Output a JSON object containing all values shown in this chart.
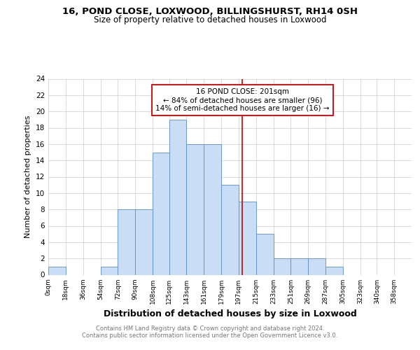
{
  "title1": "16, POND CLOSE, LOXWOOD, BILLINGSHURST, RH14 0SH",
  "title2": "Size of property relative to detached houses in Loxwood",
  "xlabel": "Distribution of detached houses by size in Loxwood",
  "ylabel": "Number of detached properties",
  "bar_left_edges": [
    0,
    18,
    36,
    54,
    72,
    90,
    108,
    125,
    143,
    161,
    179,
    197,
    215,
    233,
    251,
    269,
    287,
    305,
    323,
    340
  ],
  "bar_widths": [
    18,
    18,
    18,
    18,
    18,
    18,
    17,
    18,
    18,
    18,
    18,
    18,
    18,
    18,
    18,
    18,
    18,
    18,
    17,
    18
  ],
  "bar_heights": [
    1,
    0,
    0,
    1,
    8,
    8,
    15,
    19,
    16,
    16,
    11,
    9,
    5,
    2,
    2,
    2,
    1,
    0,
    0,
    0
  ],
  "xtick_labels": [
    "0sqm",
    "18sqm",
    "36sqm",
    "54sqm",
    "72sqm",
    "90sqm",
    "108sqm",
    "125sqm",
    "143sqm",
    "161sqm",
    "179sqm",
    "197sqm",
    "215sqm",
    "233sqm",
    "251sqm",
    "269sqm",
    "287sqm",
    "305sqm",
    "323sqm",
    "340sqm",
    "358sqm"
  ],
  "xtick_positions": [
    0,
    18,
    36,
    54,
    72,
    90,
    108,
    125,
    143,
    161,
    179,
    197,
    215,
    233,
    251,
    269,
    287,
    305,
    323,
    340,
    358
  ],
  "ylim": [
    0,
    24
  ],
  "yticks": [
    0,
    2,
    4,
    6,
    8,
    10,
    12,
    14,
    16,
    18,
    20,
    22,
    24
  ],
  "bar_color": "#c9ddf5",
  "bar_edge_color": "#5b8dc8",
  "ref_line_x": 201,
  "ref_line_color": "#cc0000",
  "annotation_line1": "16 POND CLOSE: 201sqm",
  "annotation_line2": "← 84% of detached houses are smaller (96)",
  "annotation_line3": "14% of semi-detached houses are larger (16) →",
  "annotation_box_color": "#cc0000",
  "grid_color": "#cccccc",
  "background_color": "#ffffff",
  "plot_bg_color": "#ffffff",
  "footer_text": "Contains HM Land Registry data © Crown copyright and database right 2024.\nContains public sector information licensed under the Open Government Licence v3.0.",
  "title_fontsize": 9.5,
  "subtitle_fontsize": 8.5,
  "annotation_fontsize": 7.5,
  "footer_fontsize": 6.0,
  "ylabel_fontsize": 8,
  "xlabel_fontsize": 9
}
